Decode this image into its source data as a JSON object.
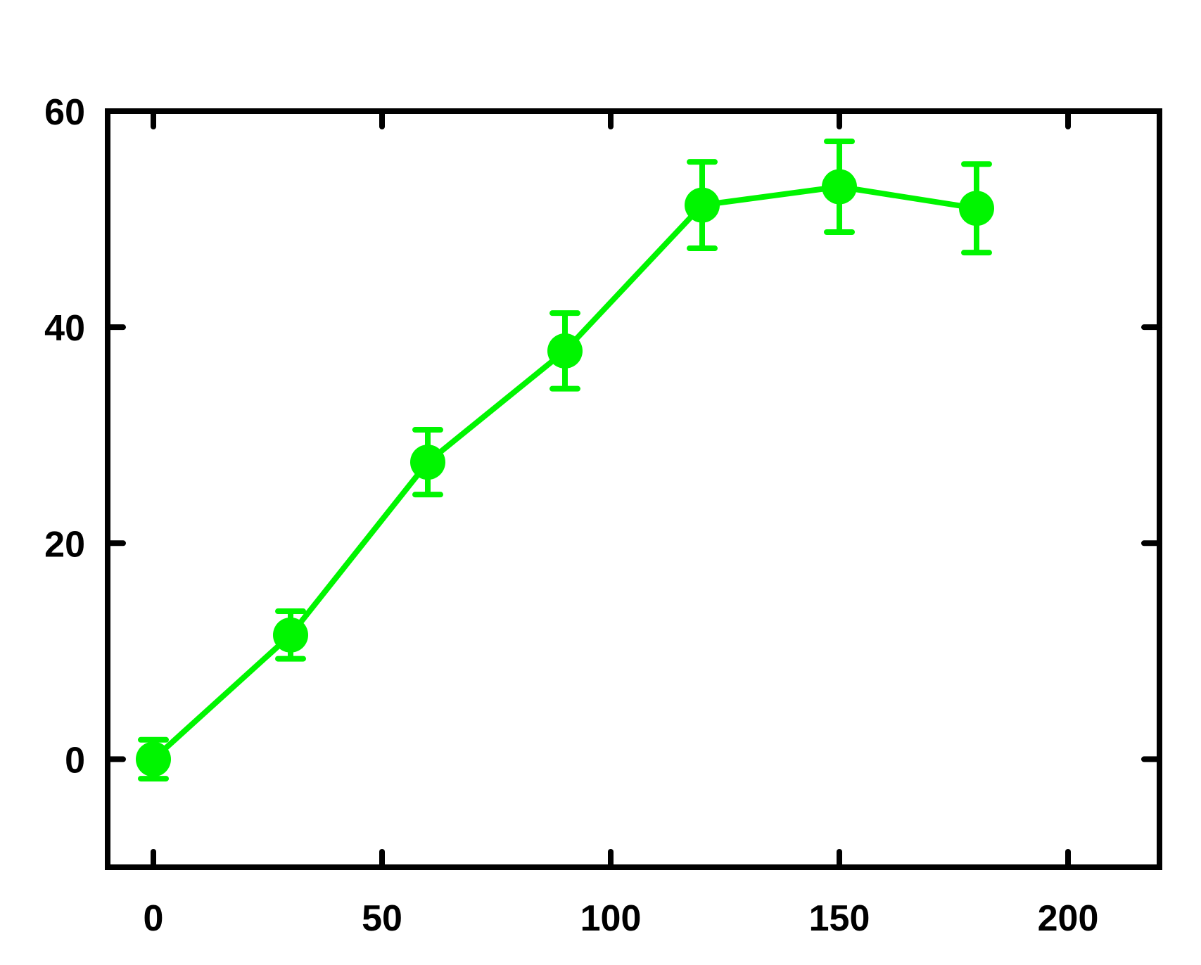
{
  "chart_data": {
    "type": "line",
    "title": "",
    "xlabel": "",
    "ylabel": "",
    "xlim": [
      -10,
      220
    ],
    "ylim": [
      -10,
      60
    ],
    "x_ticks": [
      0,
      50,
      100,
      150,
      200
    ],
    "y_ticks": [
      0,
      20,
      40,
      60
    ],
    "x_tick_labels": [
      "0",
      "50",
      "100",
      "150",
      "200"
    ],
    "y_tick_labels": [
      "0",
      "20",
      "40",
      "60"
    ],
    "grid": false,
    "legend": "none",
    "series": [
      {
        "color": "#00f500",
        "marker": "circle",
        "x": [
          0,
          30,
          60,
          90,
          120,
          150,
          180
        ],
        "y": [
          0,
          11.5,
          27.5,
          37.8,
          51.3,
          53.0,
          51.0
        ],
        "error": [
          1.8,
          2.2,
          3.0,
          3.5,
          4.0,
          4.2,
          4.1
        ]
      }
    ]
  }
}
